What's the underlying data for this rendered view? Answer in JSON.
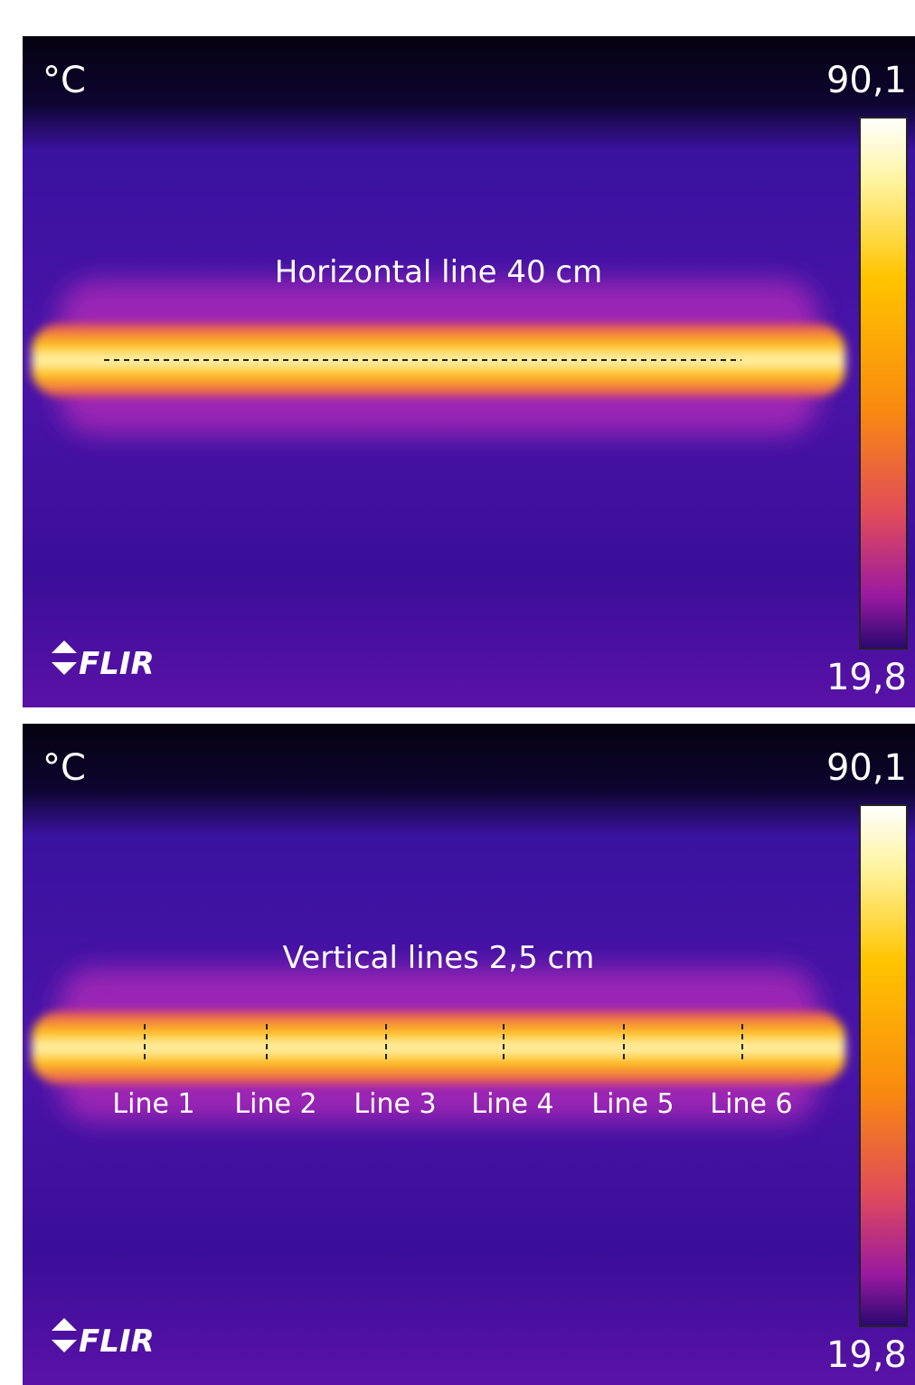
{
  "panels": [
    {
      "unit": "°C",
      "max": "90,1",
      "min": "19,8",
      "logo": "FLIR",
      "annotation": "Horizontal line  40 cm"
    },
    {
      "unit": "°C",
      "max": "90,1",
      "min": "19,8",
      "logo": "FLIR",
      "annotation": "Vertical lines  2,5 cm",
      "line_labels": [
        "Line 1",
        "Line 2",
        "Line 3",
        "Line 4",
        "Line 5",
        "Line 6"
      ]
    }
  ]
}
